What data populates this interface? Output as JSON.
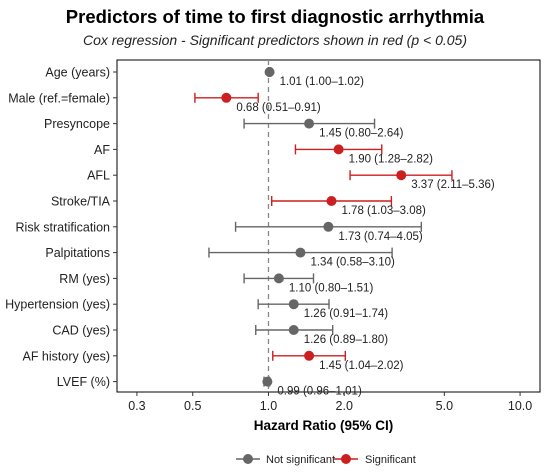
{
  "chart_data": {
    "type": "scatter",
    "title": "Predictors of time to first diagnostic arrhythmia",
    "subtitle": "Cox regression - Significant predictors shown in red (p < 0.05)",
    "xlabel": "Hazard Ratio (95% CI)",
    "x_scale": "log",
    "xlim": [
      0.25,
      12
    ],
    "xticks": [
      0.3,
      0.5,
      1.0,
      2.0,
      5.0,
      10.0
    ],
    "xtick_labels": [
      "0.3",
      "0.5",
      "1.0",
      "2.0",
      "5.0",
      "10.0"
    ],
    "reference_line": 1.0,
    "colors": {
      "not_significant": "#666666",
      "significant": "#cc1f1f"
    },
    "legend": {
      "position": "bottom",
      "items": [
        "Not significant",
        "Significant"
      ]
    },
    "rows": [
      {
        "label": "Age (years)",
        "hr": 1.01,
        "lo": 1.0,
        "hi": 1.02,
        "significant": false,
        "text": "1.01 (1.00–1.02)"
      },
      {
        "label": "Male (ref.=female)",
        "hr": 0.68,
        "lo": 0.51,
        "hi": 0.91,
        "significant": true,
        "text": "0.68 (0.51–0.91)"
      },
      {
        "label": "Presyncope",
        "hr": 1.45,
        "lo": 0.8,
        "hi": 2.64,
        "significant": false,
        "text": "1.45 (0.80–2.64)"
      },
      {
        "label": "AF",
        "hr": 1.9,
        "lo": 1.28,
        "hi": 2.82,
        "significant": true,
        "text": "1.90 (1.28–2.82)"
      },
      {
        "label": "AFL",
        "hr": 3.37,
        "lo": 2.11,
        "hi": 5.36,
        "significant": true,
        "text": "3.37 (2.11–5.36)"
      },
      {
        "label": "Stroke/TIA",
        "hr": 1.78,
        "lo": 1.03,
        "hi": 3.08,
        "significant": true,
        "text": "1.78 (1.03–3.08)"
      },
      {
        "label": "Risk stratification",
        "hr": 1.73,
        "lo": 0.74,
        "hi": 4.05,
        "significant": false,
        "text": "1.73 (0.74–4.05)"
      },
      {
        "label": "Palpitations",
        "hr": 1.34,
        "lo": 0.58,
        "hi": 3.1,
        "significant": false,
        "text": "1.34 (0.58–3.10)"
      },
      {
        "label": "RM (yes)",
        "hr": 1.1,
        "lo": 0.8,
        "hi": 1.51,
        "significant": false,
        "text": "1.10 (0.80–1.51)"
      },
      {
        "label": "Hypertension (yes)",
        "hr": 1.26,
        "lo": 0.91,
        "hi": 1.74,
        "significant": false,
        "text": "1.26 (0.91–1.74)"
      },
      {
        "label": "CAD (yes)",
        "hr": 1.26,
        "lo": 0.89,
        "hi": 1.8,
        "significant": false,
        "text": "1.26 (0.89–1.80)"
      },
      {
        "label": "AF history (yes)",
        "hr": 1.45,
        "lo": 1.04,
        "hi": 2.02,
        "significant": true,
        "text": "1.45 (1.04–2.02)"
      },
      {
        "label": "LVEF (%)",
        "hr": 0.99,
        "lo": 0.96,
        "hi": 1.01,
        "significant": false,
        "text": "0.99 (0.96–1.01)"
      }
    ]
  }
}
